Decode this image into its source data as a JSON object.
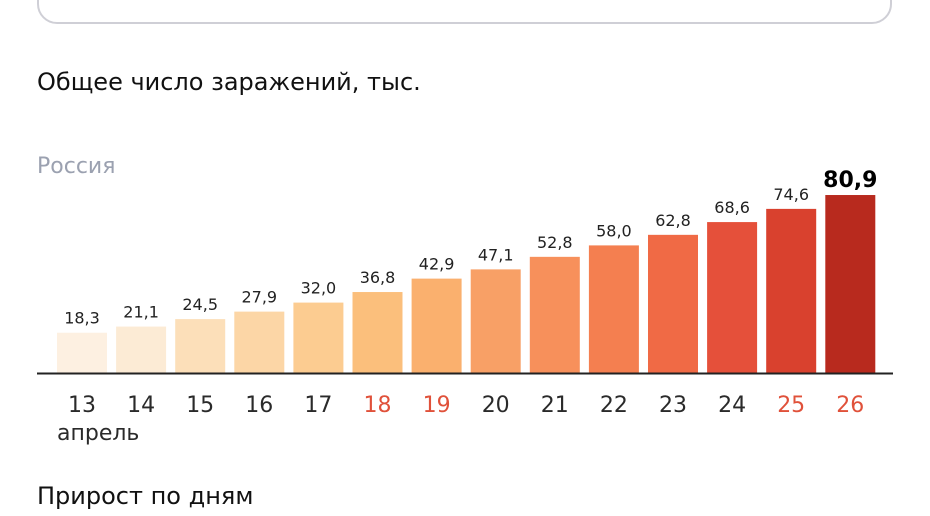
{
  "title": "Общее число заражений, тыс.",
  "region": "Россия",
  "next_section_title": "Прирост по дням",
  "chart_data": {
    "type": "bar",
    "title": "Общее число заражений, тыс.",
    "subtitle": "Россия",
    "xlabel": "",
    "ylabel": "",
    "month_label": "апрель",
    "categories": [
      "13",
      "14",
      "15",
      "16",
      "17",
      "18",
      "19",
      "20",
      "21",
      "22",
      "23",
      "24",
      "25",
      "26"
    ],
    "values": [
      18.3,
      21.1,
      24.5,
      27.9,
      32.0,
      36.8,
      42.9,
      47.1,
      52.8,
      58.0,
      62.8,
      68.6,
      74.6,
      80.9
    ],
    "value_labels": [
      "18,3",
      "21,1",
      "24,5",
      "27,9",
      "32,0",
      "36,8",
      "42,9",
      "47,1",
      "52,8",
      "58,0",
      "62,8",
      "68,6",
      "74,6",
      "80,9"
    ],
    "weekend_categories": [
      "18",
      "19",
      "25",
      "26"
    ],
    "bar_colors": [
      "#fdf0e1",
      "#fcebd5",
      "#fcdfb9",
      "#fcd6a6",
      "#fccc91",
      "#fbbf7c",
      "#fab06e",
      "#f8a066",
      "#f7905b",
      "#f47f50",
      "#f06a45",
      "#e5503a",
      "#d9412e",
      "#b82a1e"
    ],
    "axis_color": "#222222",
    "weekend_color": "#e0513a",
    "grid": false,
    "legend": "none"
  }
}
